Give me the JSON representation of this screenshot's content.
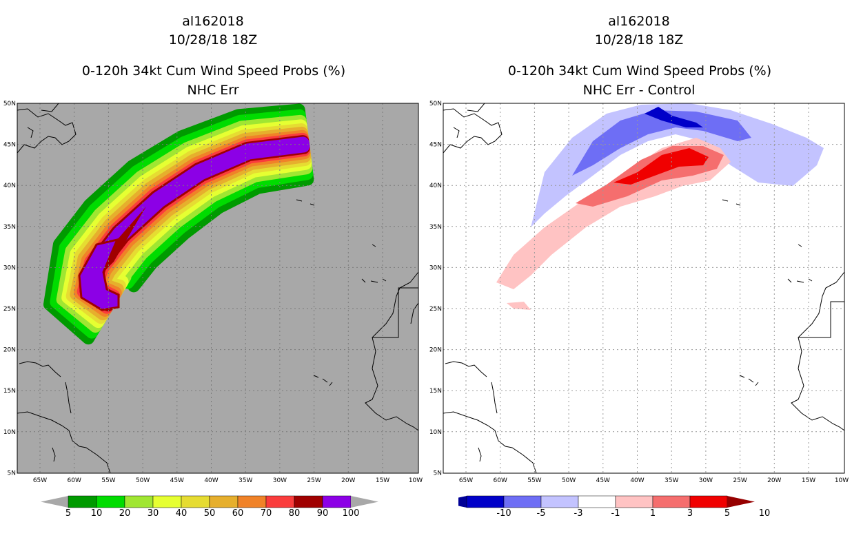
{
  "left_panel": {
    "title_line1": "al162018",
    "title_line2": "10/28/18 18Z",
    "title_line3": "0-120h 34kt Cum Wind Speed Probs (%)",
    "title_line4": "NHC Err",
    "background_color": "#a8a8a8",
    "colorbar": {
      "labels": [
        "5",
        "10",
        "20",
        "30",
        "40",
        "50",
        "60",
        "70",
        "80",
        "90",
        "100"
      ],
      "colors": [
        "#009a00",
        "#00dc00",
        "#a0e632",
        "#e6ff32",
        "#e6dc32",
        "#e6af2d",
        "#f08228",
        "#fa3c3c",
        "#a00000",
        "#8c00e6"
      ],
      "extension_color": "#a8a8a8"
    }
  },
  "right_panel": {
    "title_line1": "al162018",
    "title_line2": "10/28/18 18Z",
    "title_line3": "0-120h 34kt Cum Wind Speed Probs (%)",
    "title_line4": "NHC Err - Control",
    "colorbar": {
      "labels": [
        "-10",
        "-5",
        "-3",
        "-1",
        "1",
        "3",
        "5",
        "10"
      ],
      "colors": [
        "#0000c8",
        "#6e6ef5",
        "#c3c3ff",
        "#ffffff",
        "#ffc3c3",
        "#f56e6e",
        "#f00000"
      ],
      "low_extension_color": "#000096",
      "high_extension_color": "#960000"
    }
  },
  "map_axes": {
    "lat_labels": [
      "50N",
      "45N",
      "40N",
      "35N",
      "30N",
      "25N",
      "20N",
      "15N",
      "10N",
      "5N"
    ],
    "lon_labels": [
      "65W",
      "60W",
      "55W",
      "50W",
      "45W",
      "40W",
      "35W",
      "30W",
      "25W",
      "20W",
      "15W",
      "10W"
    ]
  }
}
